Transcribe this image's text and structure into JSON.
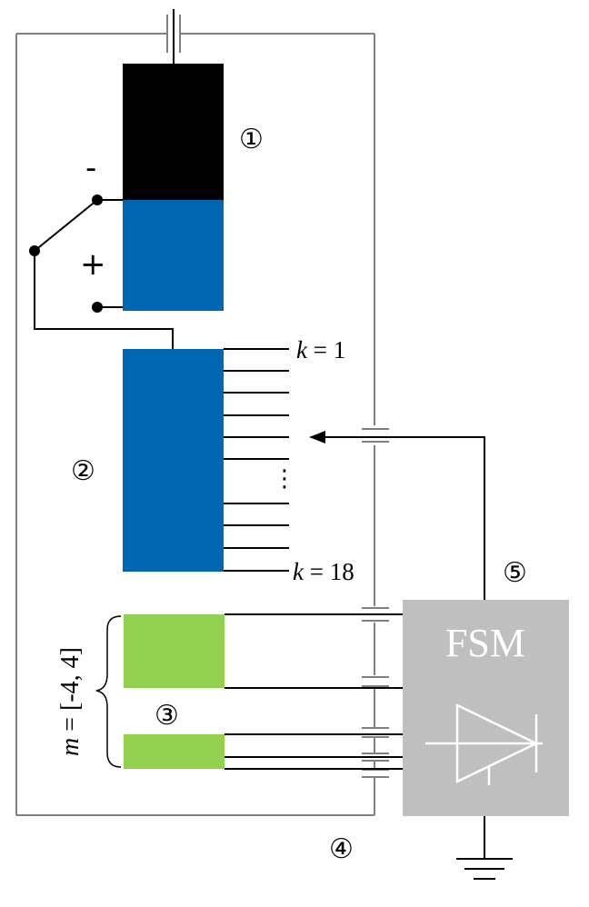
{
  "diagram": {
    "labels": {
      "block1": "①",
      "block2": "②",
      "block3": "③",
      "block4": "④",
      "block5": "⑤"
    },
    "signs": {
      "minus": "-",
      "plus": "+"
    },
    "k_first": {
      "var": "k",
      "rest": " = 1"
    },
    "k_last": {
      "var": "k",
      "rest": " = 18"
    },
    "ellipsis": "⋮",
    "m_range": {
      "var": "m",
      "rest": " = [-4, 4]"
    },
    "fsm": "FSM",
    "colors": {
      "black_block": "#000000",
      "blue_block": "#0066b3",
      "green_block": "#92d050",
      "fsm_box": "#bfbfbf",
      "frame_line": "#808080"
    }
  }
}
